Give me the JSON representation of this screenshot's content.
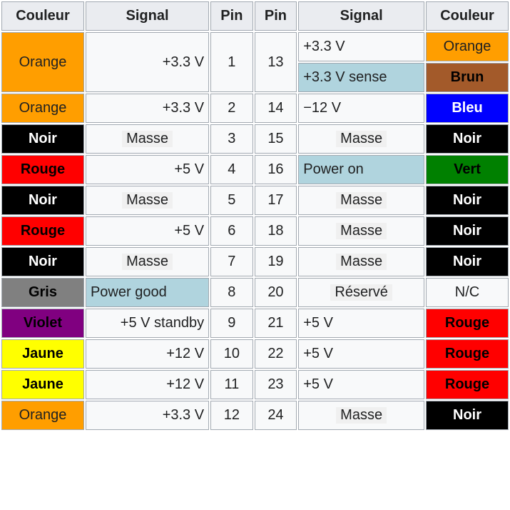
{
  "headers": {
    "couleur": "Couleur",
    "signal": "Signal",
    "pin": "Pin"
  },
  "colors": {
    "Orange": {
      "bg": "#ff9e00",
      "fg": "#202122",
      "bold": false
    },
    "Noir": {
      "bg": "#000000",
      "fg": "#ffffff",
      "bold": true
    },
    "Rouge": {
      "bg": "#ff0000",
      "fg": "#000000",
      "bold": true
    },
    "Gris": {
      "bg": "#808080",
      "fg": "#000000",
      "bold": true
    },
    "Violet": {
      "bg": "#800080",
      "fg": "#000000",
      "bold": true
    },
    "Jaune": {
      "bg": "#ffff00",
      "fg": "#000000",
      "bold": true
    },
    "Brun": {
      "bg": "#a35a2a",
      "fg": "#000000",
      "bold": true
    },
    "Bleu": {
      "bg": "#0000ff",
      "fg": "#ffffff",
      "bold": true
    },
    "Vert": {
      "bg": "#008000",
      "fg": "#000000",
      "bold": true
    },
    "N/C": {
      "bg": "#f8f9fa",
      "fg": "#202122",
      "bold": false
    }
  },
  "left": [
    {
      "color": "Orange",
      "signal": "+3.3 V",
      "pin": "1",
      "rowspan": 2,
      "highlight": false,
      "shaded": false
    },
    {
      "color": "Orange",
      "signal": "+3.3 V",
      "pin": "2",
      "highlight": false,
      "shaded": false
    },
    {
      "color": "Noir",
      "signal": "Masse",
      "pin": "3",
      "highlight": false,
      "shaded": true
    },
    {
      "color": "Rouge",
      "signal": "+5 V",
      "pin": "4",
      "highlight": false,
      "shaded": false
    },
    {
      "color": "Noir",
      "signal": "Masse",
      "pin": "5",
      "highlight": false,
      "shaded": true
    },
    {
      "color": "Rouge",
      "signal": "+5 V",
      "pin": "6",
      "highlight": false,
      "shaded": false
    },
    {
      "color": "Noir",
      "signal": "Masse",
      "pin": "7",
      "highlight": false,
      "shaded": true
    },
    {
      "color": "Gris",
      "signal": "Power good",
      "pin": "8",
      "highlight": true,
      "shaded": false
    },
    {
      "color": "Violet",
      "signal": "+5 V standby",
      "pin": "9",
      "highlight": false,
      "shaded": false
    },
    {
      "color": "Jaune",
      "signal": "+12 V",
      "pin": "10",
      "highlight": false,
      "shaded": false
    },
    {
      "color": "Jaune",
      "signal": "+12 V",
      "pin": "11",
      "highlight": false,
      "shaded": false
    },
    {
      "color": "Orange",
      "signal": "+3.3 V",
      "pin": "12",
      "highlight": false,
      "shaded": false
    }
  ],
  "right": [
    {
      "pin": "13",
      "rowspan": 2,
      "signals": [
        {
          "text": "+3.3 V",
          "highlight": false,
          "shaded": false,
          "color": "Orange"
        },
        {
          "text": "+3.3 V sense",
          "highlight": true,
          "shaded": false,
          "color": "Brun"
        }
      ]
    },
    {
      "pin": "14",
      "signals": [
        {
          "text": "−12 V",
          "highlight": false,
          "shaded": false,
          "color": "Bleu"
        }
      ]
    },
    {
      "pin": "15",
      "signals": [
        {
          "text": "Masse",
          "highlight": false,
          "shaded": true,
          "color": "Noir"
        }
      ]
    },
    {
      "pin": "16",
      "signals": [
        {
          "text": "Power on",
          "highlight": true,
          "shaded": false,
          "color": "Vert"
        }
      ]
    },
    {
      "pin": "17",
      "signals": [
        {
          "text": "Masse",
          "highlight": false,
          "shaded": true,
          "color": "Noir"
        }
      ]
    },
    {
      "pin": "18",
      "signals": [
        {
          "text": "Masse",
          "highlight": false,
          "shaded": true,
          "color": "Noir"
        }
      ]
    },
    {
      "pin": "19",
      "signals": [
        {
          "text": "Masse",
          "highlight": false,
          "shaded": true,
          "color": "Noir"
        }
      ]
    },
    {
      "pin": "20",
      "signals": [
        {
          "text": "Réservé",
          "highlight": false,
          "shaded": true,
          "color": "N/C"
        }
      ]
    },
    {
      "pin": "21",
      "signals": [
        {
          "text": "+5 V",
          "highlight": false,
          "shaded": false,
          "color": "Rouge"
        }
      ]
    },
    {
      "pin": "22",
      "signals": [
        {
          "text": "+5 V",
          "highlight": false,
          "shaded": false,
          "color": "Rouge"
        }
      ]
    },
    {
      "pin": "23",
      "signals": [
        {
          "text": "+5 V",
          "highlight": false,
          "shaded": false,
          "color": "Rouge"
        }
      ]
    },
    {
      "pin": "24",
      "signals": [
        {
          "text": "Masse",
          "highlight": false,
          "shaded": true,
          "color": "Noir"
        }
      ]
    }
  ]
}
